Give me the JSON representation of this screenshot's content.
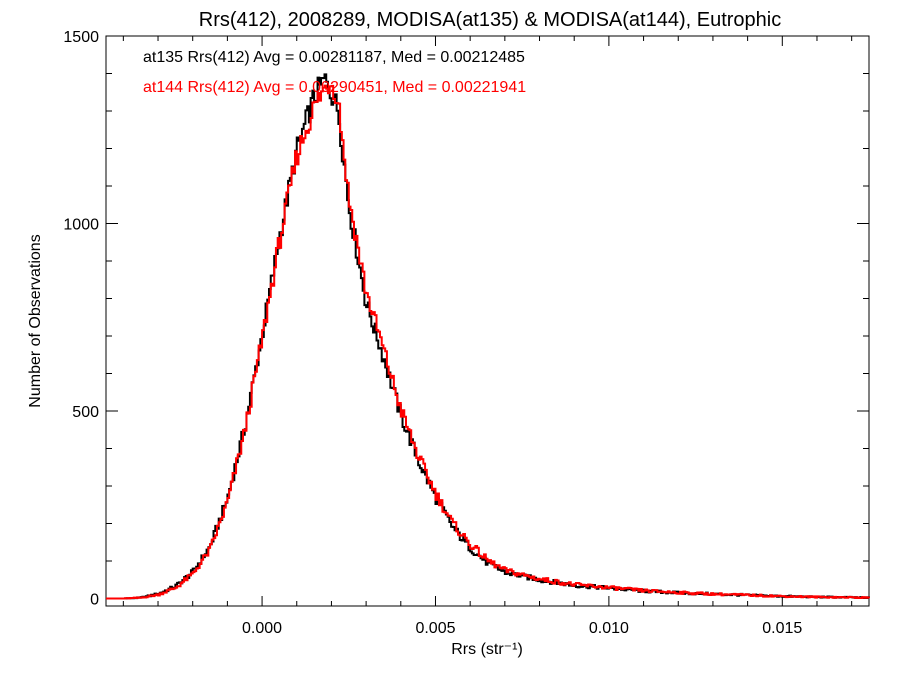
{
  "chart_data": {
    "type": "line",
    "title": "Rrs(412), 2008289, MODISA(at135) & MODISA(at144), Eutrophic",
    "xlabel": "Rrs (str⁻¹)",
    "ylabel": "Number of Observations",
    "xlim": [
      -0.0045,
      0.0175
    ],
    "ylim": [
      -20,
      1500
    ],
    "xticks": [
      0.0,
      0.005,
      0.01,
      0.015
    ],
    "xtick_labels": [
      "0.000",
      "0.005",
      "0.010",
      "0.015"
    ],
    "yticks": [
      0,
      500,
      1000,
      1500
    ],
    "ytick_labels": [
      "0",
      "500",
      "1000",
      "1500"
    ],
    "grid": false,
    "legend": "top-left",
    "series": [
      {
        "name": "at135 Rrs(412) Avg = 0.00281187, Med = 0.00212485",
        "color": "#000000",
        "x": [
          -0.0045,
          -0.004,
          -0.0035,
          -0.003,
          -0.0025,
          -0.002,
          -0.0015,
          -0.001,
          -0.0005,
          0.0,
          0.0005,
          0.001,
          0.0015,
          0.0018,
          0.002,
          0.0022,
          0.0025,
          0.003,
          0.0035,
          0.004,
          0.0045,
          0.005,
          0.0055,
          0.006,
          0.0065,
          0.007,
          0.008,
          0.009,
          0.01,
          0.011,
          0.012,
          0.013,
          0.014,
          0.015,
          0.016,
          0.017,
          0.0175
        ],
        "y": [
          0,
          0,
          2,
          12,
          32,
          70,
          138,
          265,
          455,
          700,
          960,
          1195,
          1335,
          1385,
          1350,
          1300,
          1050,
          790,
          645,
          490,
          370,
          270,
          190,
          135,
          95,
          70,
          50,
          35,
          28,
          20,
          15,
          12,
          9,
          6,
          4,
          3,
          2
        ]
      },
      {
        "name": "at144 Rrs(412) Avg = 0.00290451, Med = 0.00221941",
        "color": "#ff0000",
        "x": [
          -0.0045,
          -0.004,
          -0.0035,
          -0.003,
          -0.0025,
          -0.002,
          -0.0015,
          -0.001,
          -0.0005,
          0.0,
          0.0005,
          0.001,
          0.0015,
          0.0018,
          0.002,
          0.0022,
          0.0025,
          0.003,
          0.0035,
          0.004,
          0.0045,
          0.005,
          0.0055,
          0.006,
          0.0065,
          0.007,
          0.008,
          0.009,
          0.01,
          0.011,
          0.012,
          0.013,
          0.014,
          0.015,
          0.016,
          0.017,
          0.0175
        ],
        "y": [
          0,
          0,
          2,
          10,
          28,
          65,
          130,
          255,
          445,
          690,
          950,
          1180,
          1310,
          1360,
          1380,
          1330,
          1070,
          820,
          665,
          505,
          380,
          282,
          200,
          145,
          102,
          75,
          52,
          37,
          29,
          21,
          16,
          12,
          9,
          6,
          4,
          3,
          2
        ]
      }
    ]
  }
}
